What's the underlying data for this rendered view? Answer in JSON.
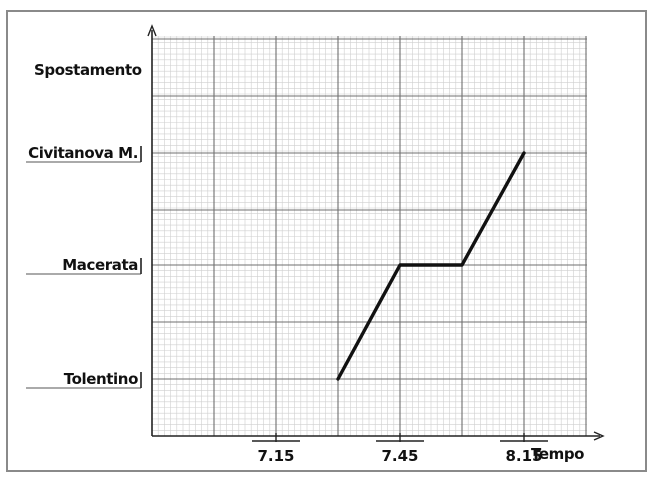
{
  "chart_data": {
    "type": "line",
    "ylabel": "Spostamento",
    "xlabel": "Tempo",
    "x_tick_labels": [
      "7.15",
      "7.45",
      "8.15"
    ],
    "x_ticks_min": [
      435,
      465,
      495
    ],
    "y_categories": [
      "Tolentino",
      "Macerata",
      "Civitanova M."
    ],
    "xlim_min": [
      405,
      525
    ],
    "grid": true,
    "series": [
      {
        "x_min": [
          450,
          465,
          480,
          495
        ],
        "y": [
          "Tolentino",
          "Macerata",
          "Macerata",
          "Civitanova M."
        ]
      }
    ]
  }
}
